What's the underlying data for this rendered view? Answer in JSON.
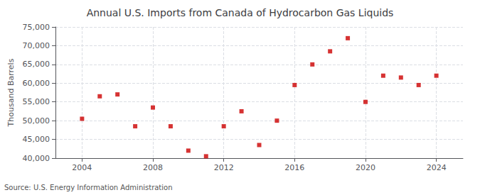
{
  "chart_data": {
    "type": "scatter",
    "title": "Annual U.S. Imports from Canada of Hydrocarbon Gas Liquids",
    "ylabel": "Thousand Barrels",
    "source": "Source: U.S. Energy Information Administration",
    "x": [
      2004,
      2005,
      2006,
      2007,
      2008,
      2009,
      2010,
      2011,
      2012,
      2013,
      2014,
      2015,
      2016,
      2017,
      2018,
      2019,
      2020,
      2021,
      2022,
      2023,
      2024
    ],
    "values": [
      50500,
      56500,
      57000,
      48500,
      53500,
      48500,
      42000,
      40500,
      48500,
      52500,
      43500,
      50000,
      59500,
      65000,
      68500,
      72000,
      55000,
      62000,
      61500,
      59500,
      62000
    ],
    "color": "#cc0000",
    "marker": "square",
    "xlim": [
      2002.5,
      2025.5
    ],
    "xticks": [
      2004,
      2008,
      2012,
      2016,
      2020,
      2024
    ],
    "ylim": [
      40000,
      75001
    ],
    "yticks": [
      {
        "value": 40000,
        "label": "40,000"
      },
      {
        "value": 45000,
        "label": "45,000"
      },
      {
        "value": 50000,
        "label": "50,000"
      },
      {
        "value": 55000,
        "label": "55,000"
      },
      {
        "value": 60000,
        "label": "60,000"
      },
      {
        "value": 65000,
        "label": "65,000"
      },
      {
        "value": 70000,
        "label": "70,000"
      },
      {
        "value": 75000,
        "label": "75,000"
      }
    ],
    "grid": true
  }
}
